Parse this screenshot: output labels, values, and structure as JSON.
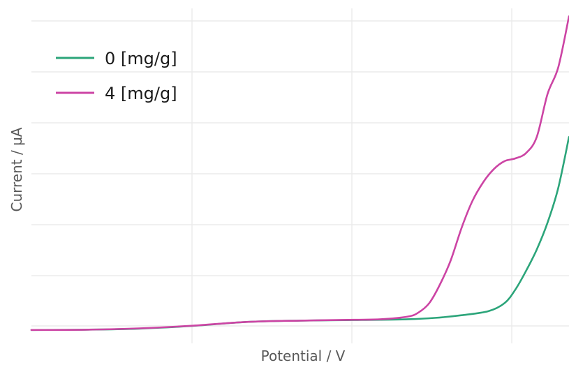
{
  "chart_data": {
    "type": "line",
    "title": "",
    "xlabel": "Potential / V",
    "ylabel": "Current / µA",
    "xlim": [
      0,
      1.0
    ],
    "ylim": [
      -0.05,
      1.2
    ],
    "x_tick_labels": [],
    "y_tick_labels": [],
    "grid": true,
    "legend_position": "top-left",
    "series": [
      {
        "name": "0 [mg/g]",
        "color": "#2ca57a",
        "x": [
          0.0,
          0.1,
          0.2,
          0.3,
          0.4,
          0.5,
          0.6,
          0.7,
          0.75,
          0.8,
          0.85,
          0.88,
          0.9,
          0.92,
          0.94,
          0.96,
          0.98,
          1.0
        ],
        "y": [
          0.0,
          0.001,
          0.005,
          0.015,
          0.03,
          0.035,
          0.037,
          0.04,
          0.045,
          0.055,
          0.07,
          0.1,
          0.15,
          0.22,
          0.3,
          0.4,
          0.53,
          0.72
        ]
      },
      {
        "name": "4 [mg/g]",
        "color": "#cc44a4",
        "x": [
          0.0,
          0.1,
          0.2,
          0.3,
          0.4,
          0.5,
          0.6,
          0.65,
          0.7,
          0.72,
          0.74,
          0.76,
          0.78,
          0.8,
          0.82,
          0.84,
          0.86,
          0.88,
          0.9,
          0.92,
          0.94,
          0.96,
          0.98,
          1.0
        ],
        "y": [
          0.0,
          0.001,
          0.006,
          0.016,
          0.03,
          0.035,
          0.038,
          0.04,
          0.05,
          0.065,
          0.1,
          0.17,
          0.26,
          0.38,
          0.48,
          0.55,
          0.6,
          0.63,
          0.64,
          0.66,
          0.72,
          0.88,
          0.98,
          1.17
        ]
      }
    ]
  }
}
